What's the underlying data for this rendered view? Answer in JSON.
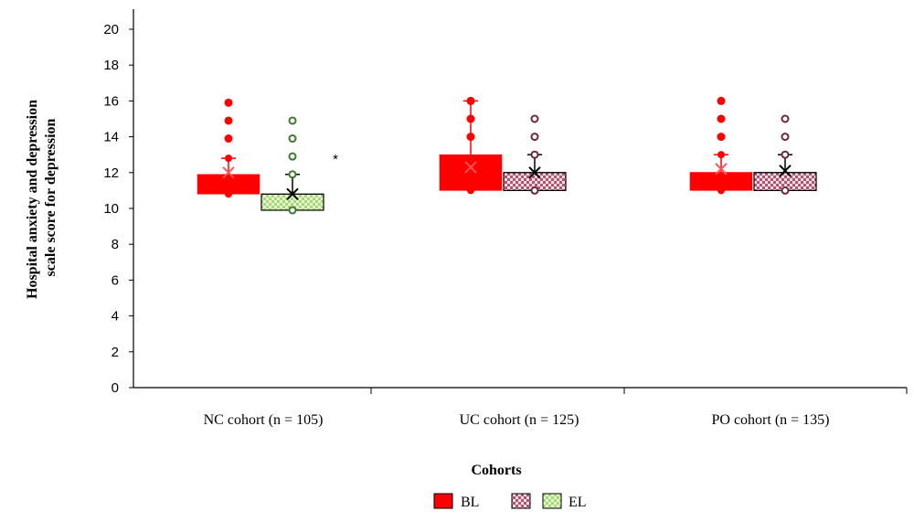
{
  "chart_data": {
    "type": "box",
    "ylabel_line1": "Hospital anxiety and depression",
    "ylabel_line2": "scale score for depression",
    "xlabel": "Cohorts",
    "ylim": [
      0,
      21
    ],
    "yticks": [
      0,
      2,
      4,
      6,
      8,
      10,
      12,
      14,
      16,
      18,
      20
    ],
    "categories": [
      "NC cohort (n = 105)",
      "UC cohort (n = 125)",
      "PO cohort (n = 135)"
    ],
    "significance_marker": "*",
    "legend": {
      "placement": "bottom-center",
      "entries": [
        "BL",
        "EL"
      ]
    },
    "series": [
      {
        "name": "BL",
        "color": "#ff0000",
        "pattern": "solid",
        "boxes": [
          {
            "q1": 10.8,
            "median": 11.5,
            "q3": 11.9,
            "min": 10.8,
            "max": 12.8,
            "mean": 12.0,
            "outliers": [
              13.9,
              14.9,
              15.9
            ]
          },
          {
            "q1": 11,
            "median": 12,
            "q3": 13,
            "min": 11,
            "max": 16,
            "mean": 12.3,
            "outliers": [
              14,
              15,
              16
            ]
          },
          {
            "q1": 11,
            "median": 12,
            "q3": 12,
            "min": 11,
            "max": 13,
            "mean": 12.2,
            "outliers": [
              14,
              15,
              16
            ]
          }
        ]
      },
      {
        "name": "EL",
        "color": "#b0e080",
        "pattern": "checker",
        "boxes": [
          {
            "q1": 9.9,
            "median": 10.8,
            "q3": 10.8,
            "min": 9.9,
            "max": 11.9,
            "mean": 10.8,
            "outliers": [
              12.9,
              13.9,
              14.9
            ]
          },
          {
            "q1": 11,
            "median": 12,
            "q3": 12,
            "min": 11,
            "max": 13,
            "mean": 12.0,
            "outliers": [
              14,
              15
            ]
          },
          {
            "q1": 11,
            "median": 12,
            "q3": 12,
            "min": 11,
            "max": 13,
            "mean": 12.1,
            "outliers": [
              14,
              15
            ]
          }
        ]
      }
    ]
  }
}
